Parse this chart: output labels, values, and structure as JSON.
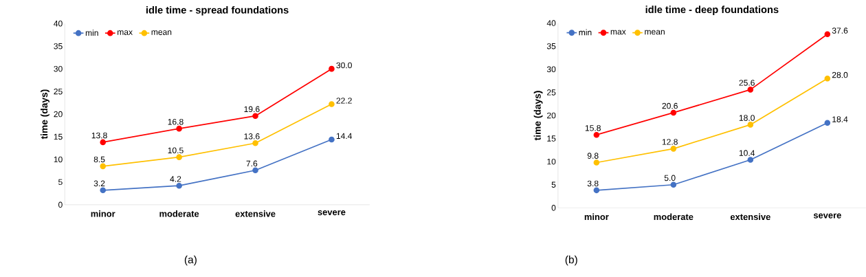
{
  "chart_data": [
    {
      "type": "line",
      "title": "idle time - spread foundations",
      "ylabel": "time (days)",
      "categories": [
        "minor",
        "moderate",
        "extensive",
        "severe"
      ],
      "ylim": [
        0,
        40
      ],
      "yticks": [
        0,
        5,
        10,
        15,
        20,
        25,
        30,
        35,
        40
      ],
      "legend": "top left",
      "marker": "circle",
      "annotations": [
        "(a)"
      ],
      "series": [
        {
          "name": "min",
          "color": "#4472c4",
          "values": [
            3.2,
            4.2,
            7.6,
            14.4
          ],
          "value_labels": [
            "3.2",
            "4.2",
            "7.6",
            "14.4"
          ]
        },
        {
          "name": "max",
          "color": "#ff0000",
          "values": [
            13.8,
            16.8,
            19.6,
            30.0
          ],
          "value_labels": [
            "13.8",
            "16.8",
            "19.6",
            "30.0"
          ]
        },
        {
          "name": "mean",
          "color": "#ffc000",
          "values": [
            8.5,
            10.5,
            13.6,
            22.2
          ],
          "value_labels": [
            "8.5",
            "10.5",
            "13.6",
            "22.2"
          ]
        }
      ]
    },
    {
      "type": "line",
      "title": "idle time - deep foundations",
      "ylabel": "time (days)",
      "categories": [
        "minor",
        "moderate",
        "extensive",
        "severe"
      ],
      "ylim": [
        0,
        40
      ],
      "yticks": [
        0,
        5,
        10,
        15,
        20,
        25,
        30,
        35,
        40
      ],
      "legend": "top left",
      "marker": "circle",
      "annotations": [
        "(b)"
      ],
      "series": [
        {
          "name": "min",
          "color": "#4472c4",
          "values": [
            3.8,
            5.0,
            10.4,
            18.4
          ],
          "value_labels": [
            "3.8",
            "5.0",
            "10.4",
            "18.4"
          ]
        },
        {
          "name": "max",
          "color": "#ff0000",
          "values": [
            15.8,
            20.6,
            25.6,
            37.6
          ],
          "value_labels": [
            "15.8",
            "20.6",
            "25.6",
            "37.6"
          ]
        },
        {
          "name": "mean",
          "color": "#ffc000",
          "values": [
            9.8,
            12.8,
            18.0,
            28.0
          ],
          "value_labels": [
            "9.8",
            "12.8",
            "18.0",
            "28.0"
          ]
        }
      ]
    }
  ]
}
